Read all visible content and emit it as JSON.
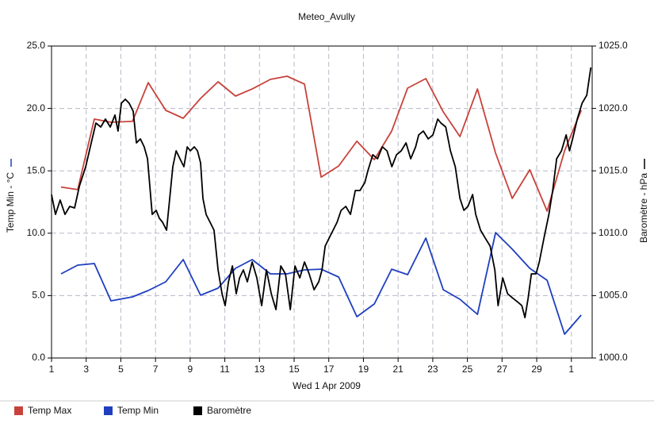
{
  "chart_data": {
    "type": "line",
    "title": "Meteo_Avully",
    "x_label": "Wed 1 Apr 2009",
    "y_label": "Temp Min - °C",
    "y2_label": "Baromètre - hPa",
    "xlim": [
      1,
      32.2
    ],
    "xticks": [
      1,
      3,
      5,
      7,
      9,
      11,
      13,
      15,
      17,
      19,
      21,
      23,
      25,
      27,
      29,
      {
        "value": 31,
        "label": "1"
      }
    ],
    "ylim": [
      0,
      25
    ],
    "yticks": [
      {
        "value": 0,
        "label": "0.0"
      },
      {
        "value": 5,
        "label": "5.0"
      },
      {
        "value": 10,
        "label": "10.0"
      },
      {
        "value": 15,
        "label": "15.0"
      },
      {
        "value": 20,
        "label": "20.0"
      },
      {
        "value": 25,
        "label": "25.0"
      }
    ],
    "y2lim": [
      1000,
      1025
    ],
    "y2ticks": [
      {
        "value": 1000,
        "label": "1000.0"
      },
      {
        "value": 1005,
        "label": "1005.0"
      },
      {
        "value": 1010,
        "label": "1010.0"
      },
      {
        "value": 1015,
        "label": "1015.0"
      },
      {
        "value": 1020,
        "label": "1020.0"
      },
      {
        "value": 1025,
        "label": "1025.0"
      }
    ],
    "grid": true,
    "legend": "bottom-left",
    "series": [
      {
        "name": "Temp Max",
        "color": "#c8423b",
        "x": [
          1.55,
          2.51,
          3.47,
          4.43,
          5.67,
          6.58,
          7.59,
          8.6,
          9.6,
          10.61,
          11.62,
          12.58,
          13.63,
          14.59,
          15.6,
          16.56,
          17.57,
          18.62,
          19.63,
          20.63,
          21.55,
          22.6,
          23.61,
          24.57,
          25.58,
          26.63,
          27.59,
          28.6,
          29.6,
          30.61,
          31.57
        ],
        "values": [
          13.7,
          13.49,
          19.15,
          18.89,
          18.96,
          22.07,
          19.85,
          19.21,
          20.8,
          22.14,
          20.99,
          21.56,
          22.33,
          22.58,
          21.95,
          14.5,
          15.39,
          17.37,
          15.9,
          18.19,
          21.63,
          22.39,
          19.72,
          17.75,
          21.56,
          16.41,
          12.79,
          15.08,
          11.77,
          16.6,
          19.85
        ]
      },
      {
        "name": "Temp Min",
        "color": "#1f3fbf",
        "x": [
          1.55,
          2.51,
          3.47,
          4.43,
          5.67,
          6.58,
          7.59,
          8.6,
          9.6,
          10.61,
          11.62,
          12.58,
          13.63,
          14.59,
          15.6,
          16.56,
          17.57,
          18.62,
          19.63,
          20.63,
          21.55,
          22.6,
          23.61,
          24.57,
          25.58,
          26.63,
          27.59,
          28.6,
          29.6,
          30.61,
          31.57
        ],
        "values": [
          6.74,
          7.44,
          7.57,
          4.58,
          4.9,
          5.41,
          6.11,
          7.89,
          5.03,
          5.6,
          7.19,
          7.89,
          6.74,
          6.74,
          7.06,
          7.12,
          6.49,
          3.31,
          4.33,
          7.12,
          6.68,
          9.61,
          5.47,
          4.71,
          3.5,
          10.05,
          8.72,
          7.19,
          6.23,
          1.91,
          3.44
        ]
      },
      {
        "name": "Baromètre",
        "color": "#000000",
        "axis": "y2",
        "x": [
          1.0,
          1.23,
          1.5,
          1.78,
          2.05,
          2.33,
          2.6,
          2.97,
          3.29,
          3.56,
          3.84,
          4.11,
          4.39,
          4.66,
          4.84,
          5.03,
          5.26,
          5.48,
          5.71,
          5.9,
          6.13,
          6.35,
          6.54,
          6.81,
          7.04,
          7.22,
          7.41,
          7.64,
          7.82,
          8.0,
          8.19,
          8.41,
          8.64,
          8.83,
          9.01,
          9.24,
          9.42,
          9.6,
          9.74,
          9.92,
          10.15,
          10.38,
          10.61,
          10.84,
          11.02,
          11.21,
          11.44,
          11.66,
          11.85,
          12.07,
          12.3,
          12.58,
          12.85,
          13.13,
          13.4,
          13.68,
          13.95,
          14.23,
          14.5,
          14.78,
          15.05,
          15.33,
          15.6,
          15.87,
          16.15,
          16.42,
          16.61,
          16.79,
          17.02,
          17.25,
          17.48,
          17.71,
          17.98,
          18.25,
          18.53,
          18.8,
          19.08,
          19.26,
          19.54,
          19.81,
          20.09,
          20.36,
          20.64,
          20.91,
          21.18,
          21.46,
          21.73,
          22.01,
          22.19,
          22.46,
          22.74,
          23.01,
          23.29,
          23.47,
          23.75,
          24.02,
          24.3,
          24.57,
          24.8,
          25.03,
          25.3,
          25.48,
          25.76,
          26.03,
          26.31,
          26.58,
          26.77,
          27.04,
          27.32,
          27.59,
          27.87,
          28.14,
          28.32,
          28.51,
          28.69,
          28.96,
          29.15,
          29.42,
          29.7,
          29.92,
          30.15,
          30.43,
          30.7,
          30.89,
          31.07,
          31.34,
          31.62,
          31.89,
          32.12
        ],
        "values": [
          1013.1,
          1011.51,
          1012.66,
          1011.51,
          1012.15,
          1012.02,
          1013.74,
          1015.33,
          1017.24,
          1018.83,
          1018.51,
          1019.15,
          1018.51,
          1019.47,
          1018.19,
          1020.42,
          1020.74,
          1020.42,
          1019.78,
          1017.24,
          1017.56,
          1016.92,
          1015.97,
          1011.51,
          1011.83,
          1011.2,
          1010.88,
          1010.24,
          1012.79,
          1015.33,
          1016.6,
          1015.97,
          1015.33,
          1016.92,
          1016.6,
          1016.92,
          1016.6,
          1015.65,
          1012.79,
          1011.51,
          1010.88,
          1010.24,
          1007.06,
          1005.15,
          1004.2,
          1006.11,
          1007.38,
          1005.15,
          1006.42,
          1007.06,
          1006.11,
          1007.7,
          1006.42,
          1004.2,
          1007.06,
          1005.15,
          1003.88,
          1007.38,
          1006.74,
          1003.88,
          1007.38,
          1006.42,
          1007.7,
          1006.74,
          1005.47,
          1006.11,
          1007.06,
          1008.97,
          1009.61,
          1010.24,
          1010.88,
          1011.83,
          1012.15,
          1011.51,
          1013.42,
          1013.42,
          1014.06,
          1015.01,
          1016.29,
          1015.97,
          1016.92,
          1016.6,
          1015.33,
          1016.29,
          1016.6,
          1017.24,
          1015.97,
          1016.92,
          1017.88,
          1018.19,
          1017.56,
          1017.88,
          1019.15,
          1018.83,
          1018.51,
          1016.6,
          1015.33,
          1012.79,
          1011.83,
          1012.15,
          1013.1,
          1011.51,
          1010.24,
          1009.61,
          1008.97,
          1007.06,
          1004.2,
          1006.42,
          1005.15,
          1004.83,
          1004.52,
          1004.2,
          1003.24,
          1004.83,
          1006.74,
          1006.74,
          1007.7,
          1009.61,
          1011.51,
          1013.42,
          1015.97,
          1016.6,
          1017.88,
          1016.6,
          1017.56,
          1019.15,
          1020.42,
          1021.06,
          1023.28
        ]
      }
    ]
  }
}
